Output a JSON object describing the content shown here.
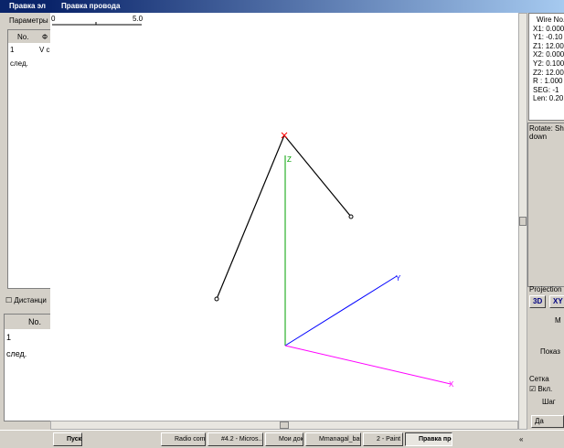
{
  "back_window": {
    "title": "Правка эл",
    "tab": "Параметры",
    "table": {
      "headers": [
        "No.",
        "Ф"
      ],
      "rows": [
        [
          "1",
          "V c"
        ],
        [
          "след.",
          ""
        ]
      ]
    },
    "checkbox": "Дистанци",
    "lower_table": {
      "header": "No.",
      "rows": [
        "1",
        "след."
      ]
    }
  },
  "front_window": {
    "title": "Правка провода",
    "scale": [
      "0",
      "5.0"
    ],
    "axes": [
      "Z",
      "Y",
      "X"
    ]
  },
  "right_panel": {
    "info": [
      "Wire No.",
      "X1: 0.000",
      "Y1: -0.10",
      "Z1: 12.00",
      "X2: 0.000",
      "Y2: 0.100",
      "Z2: 12.00",
      "R : 1.000",
      "SEG: -1",
      "Len: 0.20"
    ],
    "rotate": [
      "Rotate: Sh",
      "down"
    ],
    "projection": "Projection",
    "buttons": [
      "3D",
      "XY"
    ],
    "m": "M",
    "show": "Показ",
    "grid": "Сетка",
    "grid_on": "Вкл.",
    "step": "Шаг",
    "ok": "Да"
  },
  "taskbar": {
    "start": "Пуск",
    "items": [
      "Radio commu...",
      "#4.2 - Micros...",
      "Мои документы",
      "Mmanagal_basic",
      "2 - Paint",
      "Правка про..."
    ],
    "tray": "«"
  }
}
